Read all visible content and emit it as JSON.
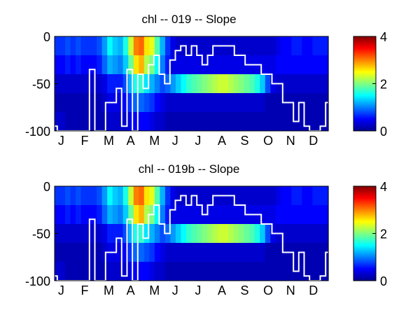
{
  "chart_data": [
    {
      "type": "heatmap",
      "title": "chl -- 019 -- Slope",
      "xlabel": "",
      "ylabel": "",
      "x_tick_labels": [
        "J",
        "F",
        "M",
        "A",
        "M",
        "J",
        "J",
        "A",
        "S",
        "O",
        "N",
        "D"
      ],
      "y_ticks": [
        0,
        -50,
        -100
      ],
      "ylim": [
        -100,
        0
      ],
      "colorbar": {
        "ticks": [
          0,
          2,
          4
        ],
        "range": [
          0,
          4
        ],
        "colormap": "jet"
      },
      "heatmap_note": "depth bands (m) x weekly columns, values estimated from colors",
      "depth_bands": [
        {
          "top": 0,
          "bottom": -20,
          "values": [
            0.7,
            0.7,
            0.8,
            0.7,
            0.8,
            0.7,
            0.7,
            0.7,
            0.8,
            1.1,
            1.5,
            1.3,
            1.2,
            1.6,
            2.3,
            3.0,
            3.1,
            2.6,
            2.4,
            1.8,
            1.2,
            0.7,
            0.4,
            0.3,
            0.3,
            0.3,
            0.3,
            0.3,
            0.3,
            0.3,
            0.3,
            0.3,
            0.3,
            0.3,
            0.3,
            0.3,
            0.3,
            0.3,
            0.3,
            0.3,
            0.3,
            0.3,
            0.4,
            0.5,
            0.5,
            0.6,
            0.6,
            0.5,
            0.5,
            0.6,
            0.6,
            0.6
          ]
        },
        {
          "top": -20,
          "bottom": -40,
          "values": [
            0.5,
            0.5,
            0.6,
            0.5,
            0.6,
            0.5,
            0.5,
            0.5,
            0.6,
            0.9,
            1.2,
            1.1,
            1.0,
            1.3,
            1.9,
            2.6,
            2.8,
            2.2,
            2.0,
            1.5,
            1.0,
            0.6,
            0.4,
            0.4,
            0.4,
            0.4,
            0.4,
            0.4,
            0.4,
            0.4,
            0.4,
            0.4,
            0.4,
            0.4,
            0.4,
            0.4,
            0.4,
            0.4,
            0.4,
            0.4,
            0.4,
            0.4,
            0.5,
            0.5,
            0.5,
            0.5,
            0.5,
            0.5,
            0.5,
            0.5,
            0.5,
            0.5
          ]
        },
        {
          "top": -40,
          "bottom": -60,
          "values": [
            0.3,
            0.3,
            0.3,
            0.3,
            0.3,
            0.3,
            0.3,
            0.3,
            0.3,
            0.4,
            0.6,
            0.6,
            0.6,
            0.8,
            1.2,
            1.6,
            1.7,
            1.4,
            1.2,
            1.0,
            0.8,
            0.9,
            1.1,
            1.3,
            1.5,
            1.7,
            1.8,
            1.9,
            2.0,
            2.1,
            2.2,
            2.3,
            2.3,
            2.2,
            2.1,
            2.0,
            1.9,
            1.8,
            1.6,
            1.3,
            0.8,
            0.4,
            0.3,
            0.3,
            0.3,
            0.3,
            0.3,
            0.3,
            0.3,
            0.3,
            0.3,
            0.3
          ]
        },
        {
          "top": -60,
          "bottom": -80,
          "values": [
            0.2,
            0.2,
            0.2,
            0.2,
            0.2,
            0.2,
            0.2,
            0.2,
            0.2,
            0.3,
            0.4,
            0.4,
            0.4,
            0.5,
            0.7,
            0.9,
            0.9,
            0.8,
            0.7,
            0.5,
            0.4,
            0.3,
            0.3,
            0.3,
            0.3,
            0.3,
            0.3,
            0.3,
            0.3,
            0.3,
            0.3,
            0.3,
            0.3,
            0.3,
            0.3,
            0.3,
            0.3,
            0.3,
            0.3,
            0.3,
            0.2,
            0.2,
            0.2,
            0.2,
            0.2,
            0.2,
            0.2,
            0.2,
            0.2,
            0.2,
            0.2,
            0.2
          ]
        },
        {
          "top": -80,
          "bottom": -100,
          "values": [
            0.3,
            0.3,
            0.2,
            0.2,
            0.2,
            0.2,
            0.2,
            0.2,
            0.2,
            0.2,
            0.3,
            0.3,
            0.3,
            0.3,
            0.4,
            0.5,
            0.5,
            0.5,
            0.4,
            0.3,
            0.3,
            0.2,
            0.2,
            0.2,
            0.2,
            0.2,
            0.2,
            0.2,
            0.2,
            0.2,
            0.2,
            0.2,
            0.2,
            0.2,
            0.2,
            0.2,
            0.2,
            0.2,
            0.2,
            0.2,
            0.2,
            0.2,
            0.2,
            0.2,
            0.2,
            0.2,
            0.2,
            0.2,
            0.2,
            0.2,
            0.2,
            0.2
          ]
        }
      ],
      "line_note": "white step line: depth (m) vs week of year",
      "line": {
        "x": [
          1,
          2,
          3,
          4,
          5,
          6,
          7,
          8,
          9,
          10,
          11,
          12,
          13,
          14,
          15,
          16,
          17,
          18,
          19,
          20,
          21,
          22,
          23,
          24,
          25,
          26,
          27,
          28,
          29,
          30,
          31,
          32,
          33,
          34,
          35,
          36,
          37,
          38,
          39,
          40,
          41,
          42,
          43,
          44,
          45,
          46,
          47,
          48,
          49,
          50,
          51,
          52
        ],
        "y": [
          -95,
          -100,
          -100,
          -100,
          -100,
          -100,
          -100,
          -35,
          -100,
          -100,
          -70,
          -70,
          -55,
          -95,
          -35,
          -100,
          -40,
          -55,
          -30,
          -20,
          -40,
          -50,
          -25,
          -15,
          -10,
          -20,
          -10,
          -20,
          -30,
          -20,
          -10,
          -10,
          -10,
          -10,
          -20,
          -20,
          -30,
          -30,
          -30,
          -40,
          -40,
          -50,
          -50,
          -70,
          -70,
          -90,
          -70,
          -95,
          -100,
          -100,
          -95,
          -70
        ]
      }
    },
    {
      "type": "heatmap",
      "title": "chl -- 019b -- Slope",
      "xlabel": "",
      "ylabel": "",
      "x_tick_labels": [
        "J",
        "F",
        "M",
        "A",
        "M",
        "J",
        "J",
        "A",
        "S",
        "O",
        "N",
        "D"
      ],
      "y_ticks": [
        0,
        -50,
        -100
      ],
      "ylim": [
        -100,
        0
      ],
      "colorbar": {
        "ticks": [
          0,
          2,
          4
        ],
        "range": [
          0,
          4
        ],
        "colormap": "jet"
      },
      "heatmap_note": "depth bands (m) x weekly columns, values estimated from colors",
      "depth_bands": [
        {
          "top": 0,
          "bottom": -20,
          "values": [
            0.7,
            0.7,
            0.8,
            0.7,
            0.8,
            0.7,
            0.7,
            0.7,
            0.8,
            1.1,
            1.5,
            1.3,
            1.2,
            1.6,
            2.3,
            3.0,
            3.1,
            2.6,
            2.4,
            1.8,
            1.2,
            0.7,
            0.4,
            0.3,
            0.3,
            0.3,
            0.3,
            0.3,
            0.3,
            0.3,
            0.3,
            0.3,
            0.3,
            0.3,
            0.3,
            0.3,
            0.3,
            0.3,
            0.3,
            0.3,
            0.3,
            0.3,
            0.4,
            0.5,
            0.5,
            0.6,
            0.6,
            0.5,
            0.5,
            0.6,
            0.6,
            0.6
          ]
        },
        {
          "top": -20,
          "bottom": -40,
          "values": [
            0.5,
            0.5,
            0.6,
            0.5,
            0.6,
            0.5,
            0.5,
            0.5,
            0.6,
            0.9,
            1.2,
            1.1,
            1.0,
            1.3,
            1.9,
            2.6,
            2.8,
            2.2,
            2.0,
            1.5,
            1.0,
            0.6,
            0.4,
            0.4,
            0.4,
            0.4,
            0.4,
            0.4,
            0.4,
            0.4,
            0.4,
            0.4,
            0.4,
            0.4,
            0.4,
            0.4,
            0.4,
            0.4,
            0.4,
            0.4,
            0.4,
            0.4,
            0.5,
            0.5,
            0.5,
            0.5,
            0.5,
            0.5,
            0.5,
            0.5,
            0.5,
            0.5
          ]
        },
        {
          "top": -40,
          "bottom": -60,
          "values": [
            0.3,
            0.3,
            0.3,
            0.3,
            0.3,
            0.3,
            0.3,
            0.3,
            0.3,
            0.4,
            0.6,
            0.6,
            0.6,
            0.8,
            1.2,
            1.6,
            1.7,
            1.4,
            1.2,
            1.0,
            0.8,
            0.9,
            1.1,
            1.3,
            1.5,
            1.7,
            1.8,
            1.9,
            2.0,
            2.1,
            2.2,
            2.3,
            2.3,
            2.2,
            2.1,
            2.0,
            1.9,
            1.8,
            1.6,
            1.3,
            0.8,
            0.4,
            0.3,
            0.3,
            0.3,
            0.3,
            0.3,
            0.3,
            0.3,
            0.3,
            0.3,
            0.3
          ]
        },
        {
          "top": -60,
          "bottom": -80,
          "values": [
            0.2,
            0.2,
            0.2,
            0.2,
            0.2,
            0.2,
            0.2,
            0.2,
            0.2,
            0.3,
            0.4,
            0.4,
            0.4,
            0.5,
            0.7,
            0.9,
            0.9,
            0.8,
            0.7,
            0.5,
            0.4,
            0.3,
            0.3,
            0.3,
            0.3,
            0.3,
            0.3,
            0.3,
            0.3,
            0.3,
            0.3,
            0.3,
            0.3,
            0.3,
            0.3,
            0.3,
            0.3,
            0.3,
            0.3,
            0.3,
            0.2,
            0.2,
            0.2,
            0.2,
            0.2,
            0.2,
            0.2,
            0.2,
            0.2,
            0.2,
            0.2,
            0.2
          ]
        },
        {
          "top": -80,
          "bottom": -100,
          "values": [
            0.3,
            0.3,
            0.2,
            0.2,
            0.2,
            0.2,
            0.2,
            0.2,
            0.2,
            0.2,
            0.3,
            0.3,
            0.3,
            0.3,
            0.4,
            0.5,
            0.5,
            0.5,
            0.4,
            0.3,
            0.3,
            0.2,
            0.2,
            0.2,
            0.2,
            0.2,
            0.2,
            0.2,
            0.2,
            0.2,
            0.2,
            0.2,
            0.2,
            0.2,
            0.2,
            0.2,
            0.2,
            0.2,
            0.2,
            0.2,
            0.2,
            0.2,
            0.2,
            0.2,
            0.2,
            0.2,
            0.2,
            0.2,
            0.2,
            0.2,
            0.2,
            0.2
          ]
        }
      ],
      "line_note": "white step line: depth (m) vs week of year",
      "line": {
        "x": [
          1,
          2,
          3,
          4,
          5,
          6,
          7,
          8,
          9,
          10,
          11,
          12,
          13,
          14,
          15,
          16,
          17,
          18,
          19,
          20,
          21,
          22,
          23,
          24,
          25,
          26,
          27,
          28,
          29,
          30,
          31,
          32,
          33,
          34,
          35,
          36,
          37,
          38,
          39,
          40,
          41,
          42,
          43,
          44,
          45,
          46,
          47,
          48,
          49,
          50,
          51,
          52
        ],
        "y": [
          -95,
          -100,
          -100,
          -100,
          -100,
          -100,
          -100,
          -35,
          -100,
          -100,
          -70,
          -70,
          -55,
          -95,
          -35,
          -100,
          -40,
          -55,
          -30,
          -20,
          -40,
          -50,
          -25,
          -15,
          -10,
          -20,
          -10,
          -20,
          -30,
          -20,
          -10,
          -10,
          -10,
          -10,
          -20,
          -20,
          -30,
          -30,
          -30,
          -40,
          -40,
          -50,
          -50,
          -70,
          -70,
          -90,
          -70,
          -95,
          -100,
          -100,
          -95,
          -70
        ]
      }
    }
  ]
}
